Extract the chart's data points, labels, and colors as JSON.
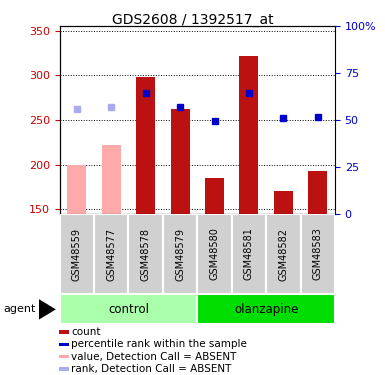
{
  "title": "GDS2608 / 1392517_at",
  "samples": [
    "GSM48559",
    "GSM48577",
    "GSM48578",
    "GSM48579",
    "GSM48580",
    "GSM48581",
    "GSM48582",
    "GSM48583"
  ],
  "bar_values": [
    200,
    222,
    298,
    262,
    185,
    322,
    170,
    193
  ],
  "bar_absent": [
    true,
    true,
    false,
    false,
    false,
    false,
    false,
    false
  ],
  "rank_values": [
    262,
    265,
    280,
    265,
    249,
    280,
    252,
    253
  ],
  "rank_absent": [
    true,
    true,
    false,
    false,
    false,
    false,
    false,
    false
  ],
  "ylim_left": [
    145,
    355
  ],
  "ylim_right": [
    0,
    100
  ],
  "yticks_left": [
    150,
    200,
    250,
    300,
    350
  ],
  "yticks_right": [
    0,
    25,
    50,
    75,
    100
  ],
  "yticklabels_right": [
    "0",
    "25",
    "50",
    "75",
    "100%"
  ],
  "groups": [
    {
      "label": "control",
      "indices": [
        0,
        1,
        2,
        3
      ],
      "color": "#aaffaa"
    },
    {
      "label": "olanzapine",
      "indices": [
        4,
        5,
        6,
        7
      ],
      "color": "#00dd00"
    }
  ],
  "bar_color_present": "#bb1111",
  "bar_color_absent": "#ffaaaa",
  "rank_color_present": "#0000cc",
  "rank_color_absent": "#aaaaee",
  "bar_width": 0.55,
  "marker_size": 5,
  "agent_label": "agent",
  "legend_items": [
    {
      "label": "count",
      "color": "#bb1111"
    },
    {
      "label": "percentile rank within the sample",
      "color": "#0000cc"
    },
    {
      "label": "value, Detection Call = ABSENT",
      "color": "#ffaaaa"
    },
    {
      "label": "rank, Detection Call = ABSENT",
      "color": "#aaaaee"
    }
  ],
  "background_color": "#ffffff",
  "grid_color": "#000000",
  "tick_label_color_left": "#cc0000",
  "tick_label_color_right": "#0000cc",
  "sample_bg_color": "#d0d0d0",
  "sample_sep_color": "#ffffff"
}
